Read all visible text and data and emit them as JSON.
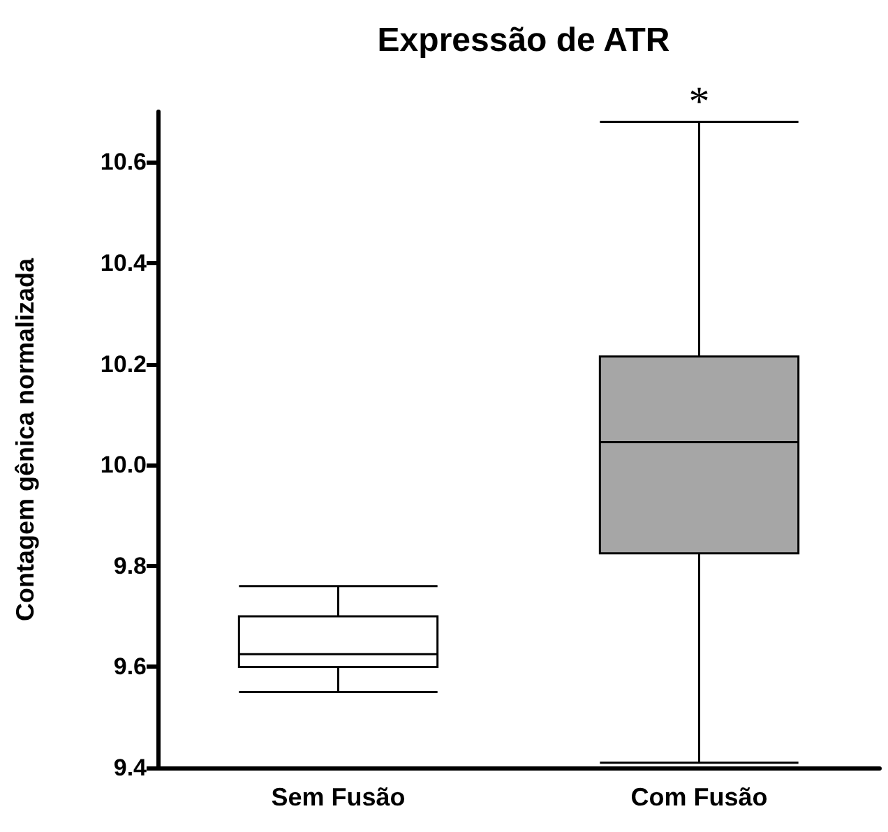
{
  "chart_data": {
    "type": "box",
    "title": "Expressão de ATR",
    "ylabel": "Contagem gênica normalizada",
    "categories": [
      "Sem Fusão",
      "Com Fusão"
    ],
    "boxes": [
      {
        "low": 9.55,
        "q1": 9.6,
        "median": 9.625,
        "q3": 9.7,
        "high": 9.76
      },
      {
        "low": 9.41,
        "q1": 9.825,
        "median": 10.045,
        "q3": 10.215,
        "high": 10.68
      }
    ],
    "colors": [
      "#ffffff",
      "#a6a6a6"
    ],
    "ylim": [
      9.4,
      10.7
    ],
    "yticks": [
      9.4,
      9.6,
      9.8,
      {
        "value": 10,
        "label": "10.0"
      },
      10.2,
      10.4,
      10.6
    ],
    "annotations": [
      "*"
    ],
    "grid": false
  }
}
